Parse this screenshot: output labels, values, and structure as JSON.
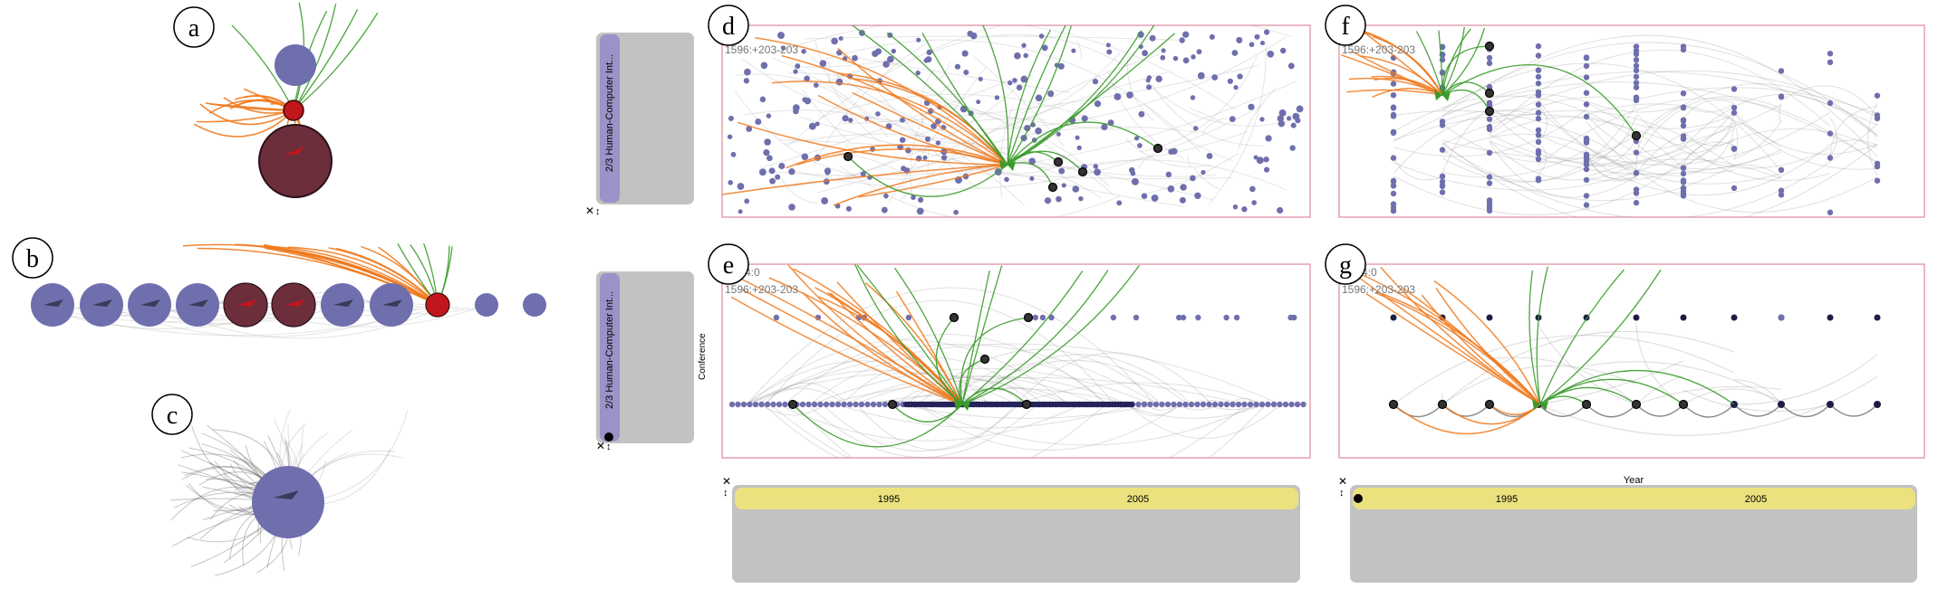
{
  "panels": {
    "a": {
      "label": "a"
    },
    "b": {
      "label": "b"
    },
    "c": {
      "label": "c"
    },
    "d": {
      "label": "d",
      "overlay_line1": "",
      "overlay_line2": "1596:+203-203"
    },
    "e": {
      "label": "e",
      "overlay_line1": "4:0",
      "overlay_line2": "1596:+203-203"
    },
    "f": {
      "label": "f",
      "overlay_line1": "",
      "overlay_line2": "1596:+203-203"
    },
    "g": {
      "label": "g",
      "overlay_line1": "4:0",
      "overlay_line2": "1596:+203-203"
    }
  },
  "side_filters": {
    "top": {
      "bar_text": "2/3 Human-Computer Int..."
    },
    "bottom": {
      "bar_text": "2/3 Human-Computer Int..."
    }
  },
  "axis_labels": {
    "conference": "Conference",
    "year": "Year"
  },
  "timeline_left": {
    "tick1": "1995",
    "tick2": "2005"
  },
  "timeline_right": {
    "tick1": "1995",
    "tick2": "2005"
  },
  "controls": {
    "close_glyph": "✕",
    "resize_glyph": "↕"
  },
  "colors": {
    "node_blue": "#6f6fae",
    "node_dark": "#6b2e3a",
    "node_red": "#c0161c",
    "cite_out": "#f07a1e",
    "cite_in": "#3a9a2a",
    "frame": "#e3a0b0",
    "panel_gray": "#c2c2c2",
    "timeline_yellow": "#ebe27e",
    "filter_purple": "#9a93c8"
  }
}
